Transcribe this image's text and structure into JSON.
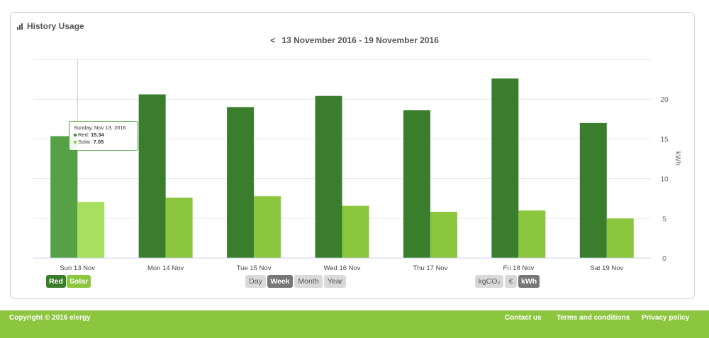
{
  "card": {
    "title": "History Usage"
  },
  "range": {
    "prev": "<",
    "label": "13 November 2016 - 19 November 2016"
  },
  "tooltip": {
    "title": "Sunday, Nov 13, 2016",
    "red_label": "Red:",
    "red_value": "15.34",
    "solar_label": "Solar:",
    "solar_value": "7.05"
  },
  "legend": {
    "red": "Red",
    "solar": "Solar"
  },
  "period": {
    "day": "Day",
    "week": "Week",
    "month": "Month",
    "year": "Year",
    "active": "Week"
  },
  "units": {
    "co2": "kgCO₂",
    "euro": "€",
    "kwh": "kWh",
    "active": "kWh"
  },
  "footer": {
    "copyright": "Copyright © 2016 elergy",
    "contact": "Contact us",
    "terms": "Terms and conditions",
    "privacy": "Privacy policy"
  },
  "colors": {
    "red": "#3a7d2c",
    "red_hover": "#56a046",
    "solar": "#8cc63f",
    "solar_hover": "#a8df5f",
    "grid": "#e6e6e6"
  },
  "chart_data": {
    "type": "bar",
    "categories": [
      "Sun 13 Nov",
      "Mon 14 Nov",
      "Tue 15 Nov",
      "Wed 16 Nov",
      "Thu 17 Nov",
      "Fri 18 Nov",
      "Sat 19 Nov"
    ],
    "series": [
      {
        "name": "Red",
        "values": [
          15.34,
          20.6,
          19.0,
          20.4,
          18.6,
          22.6,
          17.0
        ]
      },
      {
        "name": "Solar",
        "values": [
          7.05,
          7.6,
          7.8,
          6.6,
          5.8,
          6.0,
          5.0
        ]
      }
    ],
    "ylabel": "kWh",
    "yticks": [
      0,
      5,
      10,
      15,
      20
    ],
    "ylim": [
      0,
      25
    ],
    "grid": true,
    "highlight_category": 0
  }
}
